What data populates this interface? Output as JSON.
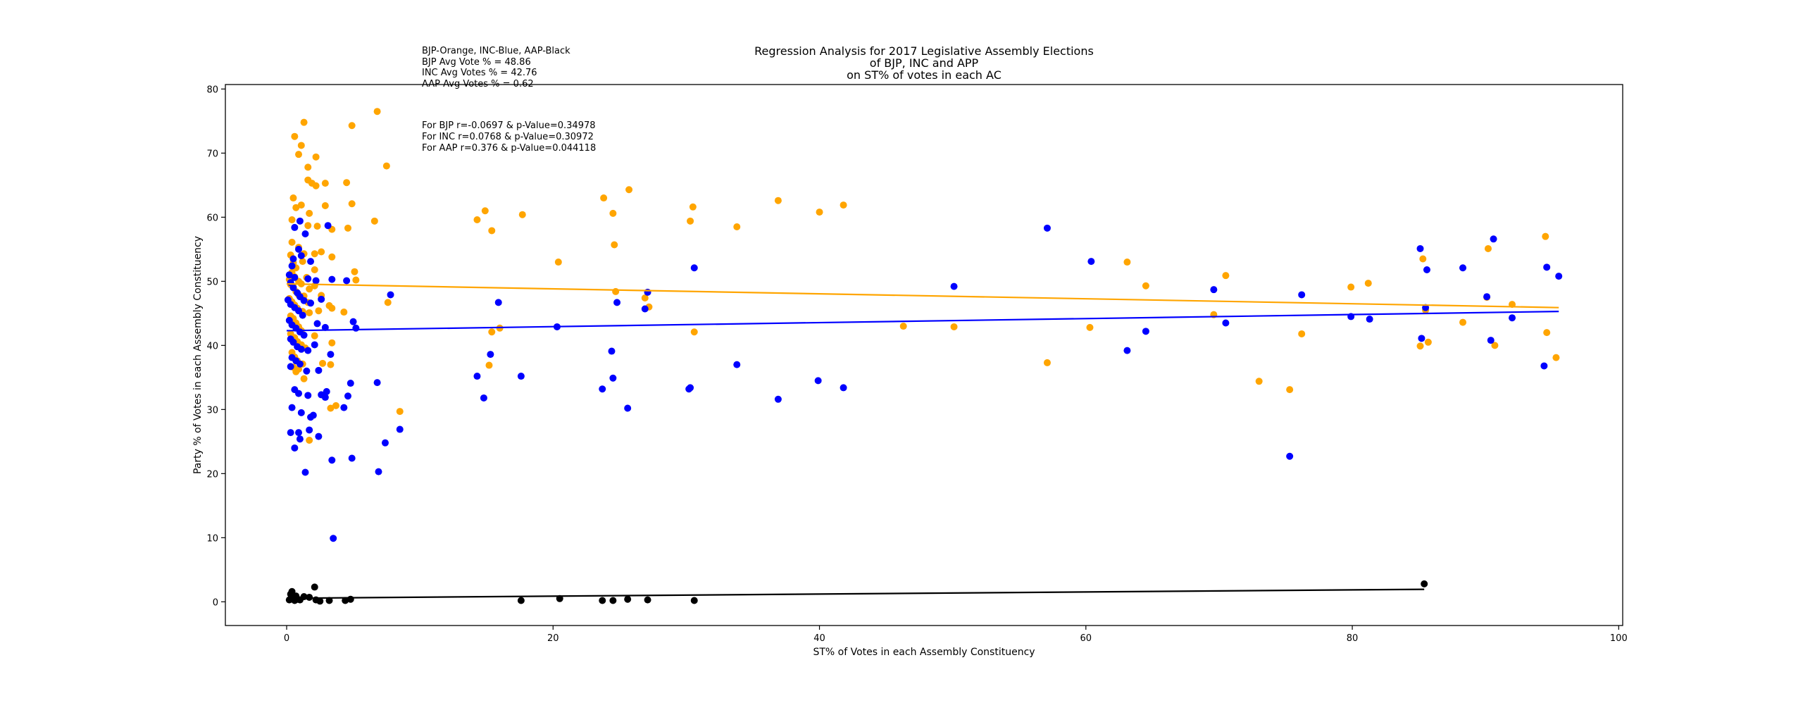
{
  "chart_data": {
    "type": "scatter",
    "title": [
      "Regression Analysis for 2017 Legislative Assembly Elections",
      "of BJP, INC and APP",
      "on ST% of votes in each AC"
    ],
    "xlabel": "ST% of Votes in each Assembly Constituency",
    "ylabel": "Party % of Votes in each Assembly Constituency",
    "xlim": [
      -4.6,
      100.3
    ],
    "ylim": [
      -3.7,
      80.7
    ],
    "xticks": [
      0,
      20,
      40,
      60,
      80,
      100
    ],
    "yticks": [
      0,
      10,
      20,
      30,
      40,
      50,
      60,
      70,
      80
    ],
    "grid": false,
    "annotations": [
      "BJP-Orange, INC-Blue, AAP-Black",
      "BJP Avg Vote % = 48.86",
      "INC Avg Votes % = 42.76",
      "AAP Avg Votes % = 0.62",
      "For BJP r=-0.0697 & p-Value=0.34978",
      "For INC r=0.0768 & p-Value=0.30972",
      "For AAP r=0.376 & p-Value=0.044118"
    ],
    "colors": {
      "BJP": "#ffa500",
      "INC": "#0000ff",
      "AAP": "#000000"
    },
    "series": [
      {
        "key": "BJP",
        "color": "#ffa500",
        "points": [
          [
            0.6,
            72.6
          ],
          [
            1.1,
            71.2
          ],
          [
            1.3,
            74.8
          ],
          [
            0.9,
            69.8
          ],
          [
            2.2,
            69.4
          ],
          [
            1.6,
            67.8
          ],
          [
            1.9,
            65.3
          ],
          [
            1.6,
            65.8
          ],
          [
            2.2,
            64.9
          ],
          [
            2.9,
            65.3
          ],
          [
            4.5,
            65.4
          ],
          [
            0.5,
            63.0
          ],
          [
            1.1,
            61.9
          ],
          [
            0.7,
            61.5
          ],
          [
            1.7,
            60.6
          ],
          [
            2.9,
            61.8
          ],
          [
            4.9,
            62.1
          ],
          [
            0.4,
            59.6
          ],
          [
            1.6,
            58.7
          ],
          [
            2.3,
            58.6
          ],
          [
            3.4,
            58.1
          ],
          [
            4.6,
            58.3
          ],
          [
            0.4,
            56.1
          ],
          [
            0.9,
            55.3
          ],
          [
            1.3,
            54.3
          ],
          [
            2.1,
            54.3
          ],
          [
            2.6,
            54.6
          ],
          [
            0.3,
            54.1
          ],
          [
            0.5,
            52.9
          ],
          [
            0.7,
            52.1
          ],
          [
            1.2,
            53.1
          ],
          [
            2.1,
            51.8
          ],
          [
            3.4,
            53.8
          ],
          [
            0.4,
            51.4
          ],
          [
            0.6,
            50.7
          ],
          [
            0.9,
            50.0
          ],
          [
            1.1,
            49.6
          ],
          [
            1.5,
            50.6
          ],
          [
            0.2,
            50.3
          ],
          [
            0.3,
            49.5
          ],
          [
            0.5,
            49.1
          ],
          [
            0.7,
            48.4
          ],
          [
            0.9,
            47.9
          ],
          [
            1.3,
            47.7
          ],
          [
            1.7,
            48.8
          ],
          [
            2.1,
            49.3
          ],
          [
            0.2,
            47.3
          ],
          [
            0.4,
            46.8
          ],
          [
            0.6,
            46.3
          ],
          [
            0.8,
            45.8
          ],
          [
            1.2,
            45.3
          ],
          [
            1.6,
            46.7
          ],
          [
            2.6,
            47.8
          ],
          [
            0.3,
            44.6
          ],
          [
            0.5,
            44.2
          ],
          [
            0.7,
            43.5
          ],
          [
            0.9,
            42.9
          ],
          [
            1.1,
            42.3
          ],
          [
            1.7,
            45.1
          ],
          [
            2.4,
            45.4
          ],
          [
            3.4,
            45.8
          ],
          [
            3.2,
            46.2
          ],
          [
            0.3,
            41.8
          ],
          [
            0.6,
            41.2
          ],
          [
            0.8,
            40.6
          ],
          [
            1.1,
            40.1
          ],
          [
            1.4,
            39.6
          ],
          [
            2.1,
            41.5
          ],
          [
            0.4,
            38.9
          ],
          [
            0.6,
            38.2
          ],
          [
            0.8,
            37.6
          ],
          [
            1.2,
            37.1
          ],
          [
            2.7,
            37.2
          ],
          [
            3.3,
            37.0
          ],
          [
            0.5,
            36.6
          ],
          [
            0.7,
            35.9
          ],
          [
            0.9,
            36.3
          ],
          [
            1.3,
            34.8
          ],
          [
            3.4,
            40.4
          ],
          [
            1.7,
            25.2
          ],
          [
            3.3,
            30.2
          ],
          [
            3.7,
            30.6
          ],
          [
            4.3,
            45.2
          ],
          [
            4.9,
            74.3
          ],
          [
            6.8,
            76.5
          ],
          [
            7.5,
            68.0
          ],
          [
            6.6,
            59.4
          ],
          [
            5.2,
            50.2
          ],
          [
            5.1,
            51.5
          ],
          [
            7.6,
            46.7
          ],
          [
            8.5,
            29.7
          ],
          [
            14.3,
            59.6
          ],
          [
            14.9,
            61.0
          ],
          [
            15.4,
            57.9
          ],
          [
            17.7,
            60.4
          ],
          [
            15.2,
            36.9
          ],
          [
            15.4,
            42.1
          ],
          [
            16.0,
            42.7
          ],
          [
            20.4,
            53.0
          ],
          [
            23.8,
            63.0
          ],
          [
            24.5,
            60.6
          ],
          [
            24.6,
            55.7
          ],
          [
            24.7,
            48.4
          ],
          [
            25.7,
            64.3
          ],
          [
            26.9,
            47.4
          ],
          [
            27.2,
            46.0
          ],
          [
            30.3,
            59.4
          ],
          [
            30.5,
            61.6
          ],
          [
            30.6,
            42.1
          ],
          [
            33.8,
            58.5
          ],
          [
            36.9,
            62.6
          ],
          [
            40.0,
            60.8
          ],
          [
            41.8,
            61.9
          ],
          [
            46.3,
            43.0
          ],
          [
            50.1,
            42.9
          ],
          [
            57.1,
            37.3
          ],
          [
            60.3,
            42.8
          ],
          [
            63.1,
            53.0
          ],
          [
            64.5,
            49.3
          ],
          [
            69.6,
            44.8
          ],
          [
            70.5,
            50.9
          ],
          [
            73.0,
            34.4
          ],
          [
            75.3,
            33.1
          ],
          [
            76.2,
            41.8
          ],
          [
            79.9,
            49.1
          ],
          [
            81.2,
            49.7
          ],
          [
            85.1,
            39.9
          ],
          [
            85.3,
            53.5
          ],
          [
            85.5,
            45.5
          ],
          [
            85.7,
            40.5
          ],
          [
            88.3,
            43.6
          ],
          [
            90.2,
            55.1
          ],
          [
            90.1,
            47.5
          ],
          [
            90.7,
            40.0
          ],
          [
            92.0,
            46.4
          ],
          [
            94.5,
            57.0
          ],
          [
            94.6,
            42.0
          ],
          [
            95.3,
            38.1
          ]
        ]
      },
      {
        "key": "INC",
        "color": "#0000ff",
        "points": [
          [
            1.0,
            59.4
          ],
          [
            0.6,
            58.4
          ],
          [
            3.1,
            58.7
          ],
          [
            1.4,
            57.4
          ],
          [
            0.9,
            55.0
          ],
          [
            1.1,
            54.0
          ],
          [
            0.5,
            53.5
          ],
          [
            1.8,
            53.1
          ],
          [
            0.4,
            52.4
          ],
          [
            0.2,
            51.0
          ],
          [
            0.6,
            50.6
          ],
          [
            1.6,
            50.4
          ],
          [
            2.2,
            50.1
          ],
          [
            3.4,
            50.3
          ],
          [
            4.5,
            50.1
          ],
          [
            0.3,
            49.8
          ],
          [
            0.5,
            49.0
          ],
          [
            0.8,
            48.2
          ],
          [
            1.0,
            47.6
          ],
          [
            1.3,
            47.0
          ],
          [
            0.1,
            47.1
          ],
          [
            0.3,
            46.4
          ],
          [
            0.6,
            45.9
          ],
          [
            0.9,
            45.4
          ],
          [
            1.2,
            44.7
          ],
          [
            1.8,
            46.6
          ],
          [
            2.6,
            47.2
          ],
          [
            0.2,
            43.9
          ],
          [
            0.4,
            43.2
          ],
          [
            0.7,
            42.7
          ],
          [
            1.0,
            42.1
          ],
          [
            1.3,
            41.6
          ],
          [
            2.3,
            43.4
          ],
          [
            2.9,
            42.8
          ],
          [
            0.3,
            41.0
          ],
          [
            0.5,
            40.5
          ],
          [
            0.8,
            39.8
          ],
          [
            1.1,
            39.4
          ],
          [
            1.6,
            39.2
          ],
          [
            2.1,
            40.1
          ],
          [
            3.3,
            38.6
          ],
          [
            0.4,
            38.1
          ],
          [
            0.7,
            37.6
          ],
          [
            1.0,
            37.1
          ],
          [
            1.5,
            36.0
          ],
          [
            2.4,
            36.1
          ],
          [
            0.3,
            36.7
          ],
          [
            0.6,
            33.1
          ],
          [
            0.9,
            32.5
          ],
          [
            1.6,
            32.2
          ],
          [
            2.6,
            32.3
          ],
          [
            2.9,
            31.9
          ],
          [
            3.0,
            32.8
          ],
          [
            0.4,
            30.3
          ],
          [
            1.1,
            29.5
          ],
          [
            1.8,
            28.8
          ],
          [
            2.0,
            29.1
          ],
          [
            2.4,
            25.8
          ],
          [
            1.7,
            26.8
          ],
          [
            0.9,
            26.4
          ],
          [
            0.3,
            26.4
          ],
          [
            0.6,
            24.0
          ],
          [
            1.0,
            25.4
          ],
          [
            1.4,
            20.2
          ],
          [
            3.4,
            22.1
          ],
          [
            3.5,
            9.9
          ],
          [
            4.3,
            30.3
          ],
          [
            4.6,
            32.1
          ],
          [
            4.8,
            34.1
          ],
          [
            4.9,
            22.4
          ],
          [
            5.0,
            43.7
          ],
          [
            5.2,
            42.7
          ],
          [
            6.8,
            34.2
          ],
          [
            6.9,
            20.3
          ],
          [
            7.4,
            24.8
          ],
          [
            7.8,
            47.9
          ],
          [
            8.5,
            26.9
          ],
          [
            14.3,
            35.2
          ],
          [
            14.8,
            31.8
          ],
          [
            15.3,
            38.6
          ],
          [
            15.9,
            46.7
          ],
          [
            17.6,
            35.2
          ],
          [
            20.3,
            42.9
          ],
          [
            23.7,
            33.2
          ],
          [
            24.4,
            39.1
          ],
          [
            24.5,
            34.9
          ],
          [
            24.8,
            46.7
          ],
          [
            25.6,
            30.2
          ],
          [
            26.9,
            45.7
          ],
          [
            27.1,
            48.3
          ],
          [
            30.2,
            33.2
          ],
          [
            30.3,
            33.4
          ],
          [
            30.6,
            52.1
          ],
          [
            33.8,
            37.0
          ],
          [
            36.9,
            31.6
          ],
          [
            39.9,
            34.5
          ],
          [
            41.8,
            33.4
          ],
          [
            50.1,
            49.2
          ],
          [
            57.1,
            58.3
          ],
          [
            60.4,
            53.1
          ],
          [
            63.1,
            39.2
          ],
          [
            64.5,
            42.2
          ],
          [
            69.6,
            48.7
          ],
          [
            70.5,
            43.5
          ],
          [
            75.3,
            22.7
          ],
          [
            76.2,
            47.9
          ],
          [
            79.9,
            44.5
          ],
          [
            81.3,
            44.1
          ],
          [
            85.1,
            55.1
          ],
          [
            85.2,
            41.1
          ],
          [
            85.5,
            45.9
          ],
          [
            85.6,
            51.8
          ],
          [
            88.3,
            52.1
          ],
          [
            90.1,
            47.6
          ],
          [
            90.4,
            40.8
          ],
          [
            90.6,
            56.6
          ],
          [
            92.0,
            44.3
          ],
          [
            94.4,
            36.8
          ],
          [
            94.6,
            52.2
          ],
          [
            95.5,
            50.8
          ]
        ]
      },
      {
        "key": "AAP",
        "color": "#000000",
        "points": [
          [
            0.2,
            0.3
          ],
          [
            0.3,
            1.2
          ],
          [
            0.4,
            1.6
          ],
          [
            0.5,
            0.6
          ],
          [
            0.6,
            0.2
          ],
          [
            0.7,
            0.9
          ],
          [
            0.8,
            0.4
          ],
          [
            1.0,
            0.3
          ],
          [
            1.3,
            0.8
          ],
          [
            1.7,
            0.7
          ],
          [
            2.1,
            2.3
          ],
          [
            2.2,
            0.3
          ],
          [
            2.5,
            0.1
          ],
          [
            3.2,
            0.2
          ],
          [
            4.4,
            0.2
          ],
          [
            4.8,
            0.4
          ],
          [
            17.6,
            0.2
          ],
          [
            20.5,
            0.5
          ],
          [
            23.7,
            0.2
          ],
          [
            24.5,
            0.2
          ],
          [
            25.6,
            0.4
          ],
          [
            27.1,
            0.3
          ],
          [
            30.6,
            0.2
          ],
          [
            85.4,
            2.8
          ]
        ]
      }
    ],
    "regression_lines": [
      {
        "key": "BJP",
        "color": "#ffa500",
        "x": [
          0,
          95.5
        ],
        "y": [
          49.6,
          45.9
        ]
      },
      {
        "key": "INC",
        "color": "#0000ff",
        "x": [
          0,
          95.5
        ],
        "y": [
          42.3,
          45.3
        ]
      },
      {
        "key": "AAP",
        "color": "#000000",
        "x": [
          0,
          85.4
        ],
        "y": [
          0.55,
          1.95
        ]
      }
    ]
  }
}
